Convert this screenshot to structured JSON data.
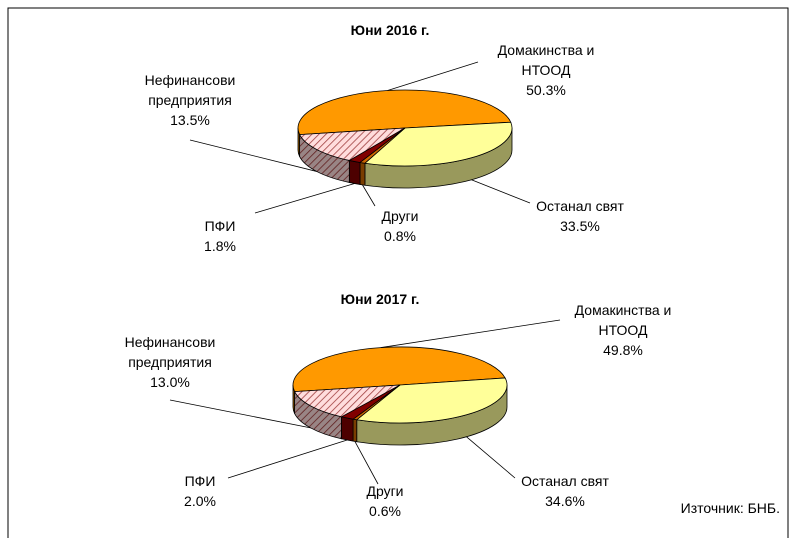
{
  "chart_data": [
    {
      "type": "pie",
      "title": "Юни 2016 г.",
      "categories": [
        "Домакинства и НТООД",
        "Останал свят",
        "Други",
        "ПФИ",
        "Нефинансови предприятия"
      ],
      "values": [
        50.3,
        33.5,
        0.8,
        1.8,
        13.5
      ],
      "value_labels": [
        "50.3%",
        "33.5%",
        "0.8%",
        "1.8%",
        "13.5%"
      ],
      "colors": [
        "#ff9900",
        "#ffff99",
        "#cc6600",
        "#800000",
        "#ffdddd"
      ],
      "hatched": [
        false,
        false,
        false,
        false,
        true
      ]
    },
    {
      "type": "pie",
      "title": "Юни 2017 г.",
      "categories": [
        "Домакинства и НТООД",
        "Останал свят",
        "Други",
        "ПФИ",
        "Нефинансови предприятия"
      ],
      "values": [
        49.8,
        34.6,
        0.6,
        2.0,
        13.0
      ],
      "value_labels": [
        "49.8%",
        "34.6%",
        "0.6%",
        "2.0%",
        "13.0%"
      ],
      "colors": [
        "#ff9900",
        "#ffff99",
        "#cc6600",
        "#800000",
        "#ffdddd"
      ],
      "hatched": [
        false,
        false,
        false,
        false,
        true
      ]
    }
  ],
  "source": "Източник: БНБ."
}
